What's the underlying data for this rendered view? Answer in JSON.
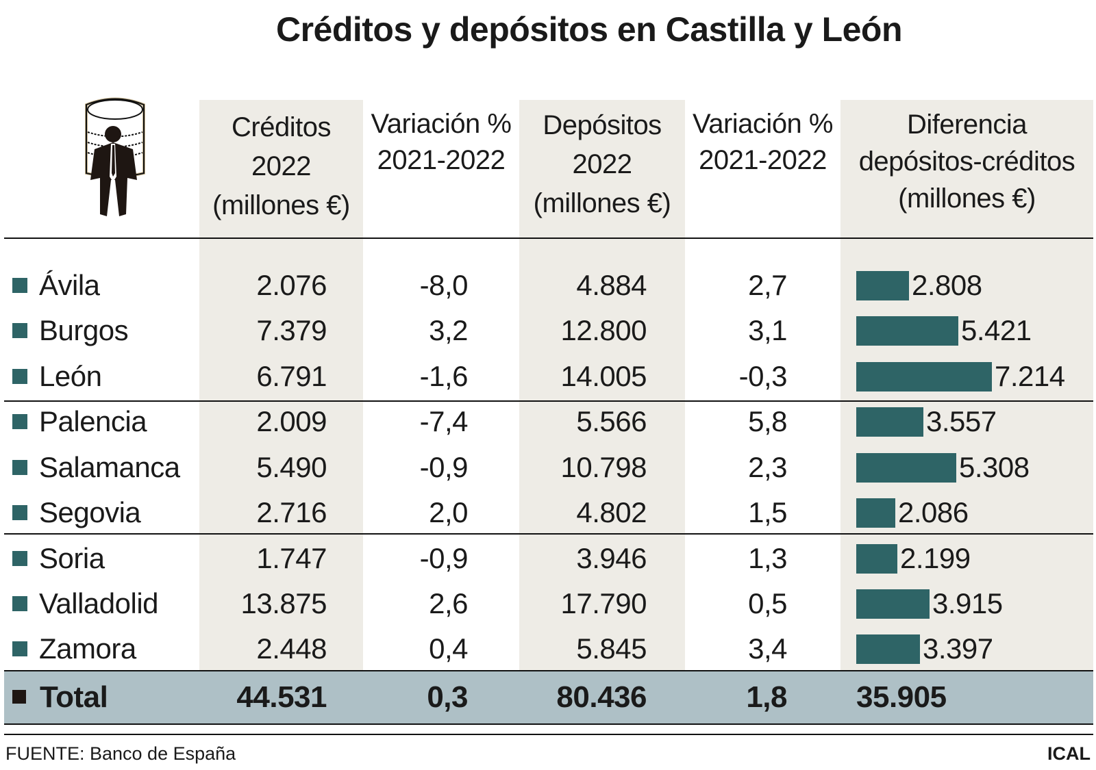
{
  "title": "Créditos y depósitos en Castilla y León",
  "icon": "businessman-with-coin-stack-icon",
  "colors": {
    "bar": "#2e6466",
    "shade": "#eeece6",
    "total_row": "#aec0c6"
  },
  "chart_data": {
    "type": "table",
    "title": "Créditos y depósitos en Castilla y León",
    "columns": [
      "Créditos 2022 (millones €)",
      "Variación % 2021-2022",
      "Depósitos 2022 (millones €)",
      "Variación % 2021-2022",
      "Diferencia depósitos-créditos (millones €)"
    ],
    "header_lines": [
      [
        "Créditos",
        "2022",
        "(millones €)"
      ],
      [
        "Variación %",
        "2021-2022"
      ],
      [
        "Depósitos",
        "2022",
        "(millones €)"
      ],
      [
        "Variación %",
        "2021-2022"
      ],
      [
        "Diferencia",
        "depósitos-créditos",
        "(millones €)"
      ]
    ],
    "rows": [
      {
        "province": "Ávila",
        "creditos": "2.076",
        "var_creditos": "-8,0",
        "depositos": "4.884",
        "var_depositos": "2,7",
        "diferencia": "2.808",
        "diferencia_value": 2808
      },
      {
        "province": "Burgos",
        "creditos": "7.379",
        "var_creditos": "3,2",
        "depositos": "12.800",
        "var_depositos": "3,1",
        "diferencia": "5.421",
        "diferencia_value": 5421
      },
      {
        "province": "León",
        "creditos": "6.791",
        "var_creditos": "-1,6",
        "depositos": "14.005",
        "var_depositos": "-0,3",
        "diferencia": "7.214",
        "diferencia_value": 7214
      },
      {
        "province": "Palencia",
        "creditos": "2.009",
        "var_creditos": "-7,4",
        "depositos": "5.566",
        "var_depositos": "5,8",
        "diferencia": "3.557",
        "diferencia_value": 3557
      },
      {
        "province": "Salamanca",
        "creditos": "5.490",
        "var_creditos": "-0,9",
        "depositos": "10.798",
        "var_depositos": "2,3",
        "diferencia": "5.308",
        "diferencia_value": 5308
      },
      {
        "province": "Segovia",
        "creditos": "2.716",
        "var_creditos": "2,0",
        "depositos": "4.802",
        "var_depositos": "1,5",
        "diferencia": "2.086",
        "diferencia_value": 2086
      },
      {
        "province": "Soria",
        "creditos": "1.747",
        "var_creditos": "-0,9",
        "depositos": "3.946",
        "var_depositos": "1,3",
        "diferencia": "2.199",
        "diferencia_value": 2199
      },
      {
        "province": "Valladolid",
        "creditos": "13.875",
        "var_creditos": "2,6",
        "depositos": "17.790",
        "var_depositos": "0,5",
        "diferencia": "3.915",
        "diferencia_value": 3915
      },
      {
        "province": "Zamora",
        "creditos": "2.448",
        "var_creditos": "0,4",
        "depositos": "5.845",
        "var_depositos": "3,4",
        "diferencia": "3.397",
        "diferencia_value": 3397
      }
    ],
    "total": {
      "province": "Total",
      "creditos": "44.531",
      "var_creditos": "0,3",
      "depositos": "80.436",
      "var_depositos": "1,8",
      "diferencia": "35.905"
    }
  },
  "footer": {
    "source": "FUENTE: Banco de España",
    "credit": "ICAL"
  }
}
